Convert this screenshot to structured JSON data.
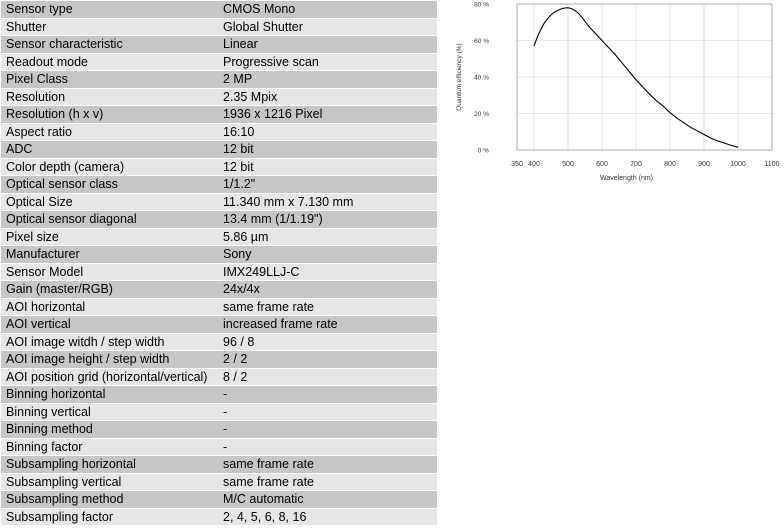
{
  "specs": [
    {
      "label": "Sensor type",
      "value": "CMOS Mono"
    },
    {
      "label": "Shutter",
      "value": "Global Shutter"
    },
    {
      "label": "Sensor characteristic",
      "value": "Linear"
    },
    {
      "label": "Readout mode",
      "value": "Progressive scan"
    },
    {
      "label": "Pixel Class",
      "value": "2 MP"
    },
    {
      "label": "Resolution",
      "value": "2.35 Mpix"
    },
    {
      "label": "Resolution (h x v)",
      "value": "1936 x 1216 Pixel"
    },
    {
      "label": "Aspect ratio",
      "value": "16:10"
    },
    {
      "label": "ADC",
      "value": "12 bit"
    },
    {
      "label": "Color depth (camera)",
      "value": "12 bit"
    },
    {
      "label": "Optical sensor class",
      "value": "1/1.2\""
    },
    {
      "label": "Optical Size",
      "value": "11.340 mm x 7.130 mm"
    },
    {
      "label": "Optical sensor diagonal",
      "value": "13.4 mm (1/1.19\")"
    },
    {
      "label": "Pixel size",
      "value": "5.86 µm"
    },
    {
      "label": "Manufacturer",
      "value": "Sony"
    },
    {
      "label": "Sensor Model",
      "value": "IMX249LLJ-C"
    },
    {
      "label": "Gain (master/RGB)",
      "value": "24x/4x"
    },
    {
      "label": "AOI horizontal",
      "value": "same frame rate"
    },
    {
      "label": "AOI vertical",
      "value": "increased frame rate"
    },
    {
      "label": "AOI image witdh / step width",
      "value": "96 / 8"
    },
    {
      "label": "AOI image height / step width",
      "value": "2 / 2"
    },
    {
      "label": "AOI position grid (horizontal/vertical)",
      "value": "8 / 2"
    },
    {
      "label": "Binning horizontal",
      "value": "-"
    },
    {
      "label": "Binning vertical",
      "value": "-"
    },
    {
      "label": "Binning method",
      "value": "-"
    },
    {
      "label": "Binning factor",
      "value": "-"
    },
    {
      "label": "Subsampling horizontal",
      "value": "same frame rate"
    },
    {
      "label": "Subsampling vertical",
      "value": "same frame rate"
    },
    {
      "label": "Subsampling method",
      "value": "M/C automatic"
    },
    {
      "label": "Subsampling factor",
      "value": "2, 4, 5, 6, 8, 16"
    }
  ],
  "colors": {
    "row_dark": "#c6c6c6",
    "row_light": "#e6e6e6",
    "curve": "#000000",
    "grid": "#d0d0d0"
  },
  "chart_data": {
    "type": "line",
    "title": "",
    "xlabel": "Wavelength (nm)",
    "ylabel": "Quantum efficiency (%)",
    "xlim": [
      350,
      1100
    ],
    "ylim": [
      0,
      80
    ],
    "xticks": [
      "350",
      "400",
      "500",
      "600",
      "700",
      "800",
      "900",
      "1000",
      "1100"
    ],
    "yticks": [
      "0 %",
      "20 %",
      "40 %",
      "60 %",
      "80 %"
    ],
    "grid": true,
    "series": [
      {
        "x": [
          400,
          410,
          420,
          430,
          440,
          450,
          460,
          470,
          480,
          490,
          500,
          510,
          520,
          530,
          540,
          550,
          560,
          580,
          600,
          620,
          640,
          660,
          680,
          700,
          720,
          740,
          760,
          780,
          800,
          820,
          840,
          860,
          880,
          900,
          920,
          940,
          960,
          980,
          1000
        ],
        "y": [
          57,
          62,
          66,
          69.5,
          72,
          74,
          75.5,
          76.5,
          77.3,
          77.8,
          78,
          77.5,
          76.5,
          75,
          73,
          70.5,
          68,
          64,
          60,
          56,
          52,
          47.5,
          43,
          38.5,
          34.5,
          30.5,
          27,
          24,
          20.5,
          17.5,
          15,
          12.5,
          10.5,
          8.5,
          6.5,
          5,
          3.8,
          2.5,
          1.5
        ]
      }
    ]
  }
}
